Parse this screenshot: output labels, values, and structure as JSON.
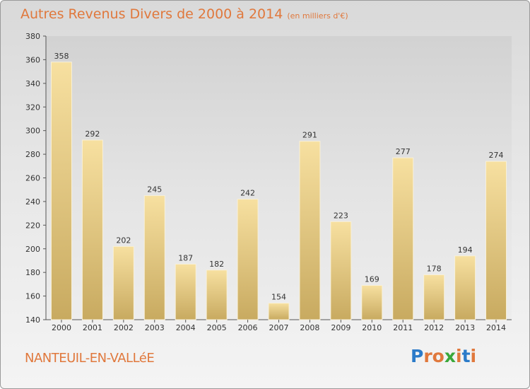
{
  "title": "Autres Revenus Divers de 2000 à 2014",
  "subtitle": "(en milliers d'€)",
  "commune": "NANTEUIL-EN-VALLéE",
  "logo": {
    "letters": [
      "P",
      "r",
      "o",
      "x",
      "i",
      "t",
      "i"
    ],
    "colors": [
      "#2b7bc9",
      "#e0783c",
      "#e0783c",
      "#3aa83a",
      "#e0783c",
      "#2b7bc9",
      "#e0783c"
    ]
  },
  "colors": {
    "title": "#e0783c",
    "bar_top": "#f7e0a0",
    "bar_bottom": "#c8aa60"
  },
  "chart_data": {
    "type": "bar",
    "categories": [
      "2000",
      "2001",
      "2002",
      "2003",
      "2004",
      "2005",
      "2006",
      "2007",
      "2008",
      "2009",
      "2010",
      "2011",
      "2012",
      "2013",
      "2014"
    ],
    "values": [
      358,
      292,
      202,
      245,
      187,
      182,
      242,
      154,
      291,
      223,
      169,
      277,
      178,
      194,
      274
    ],
    "title": "Autres Revenus Divers de 2000 à 2014",
    "xlabel": "",
    "ylabel": "",
    "ylim": [
      140,
      380
    ],
    "yticks": [
      140,
      160,
      180,
      200,
      220,
      240,
      260,
      280,
      300,
      320,
      340,
      360,
      380
    ],
    "grid": false,
    "legend": "none"
  }
}
